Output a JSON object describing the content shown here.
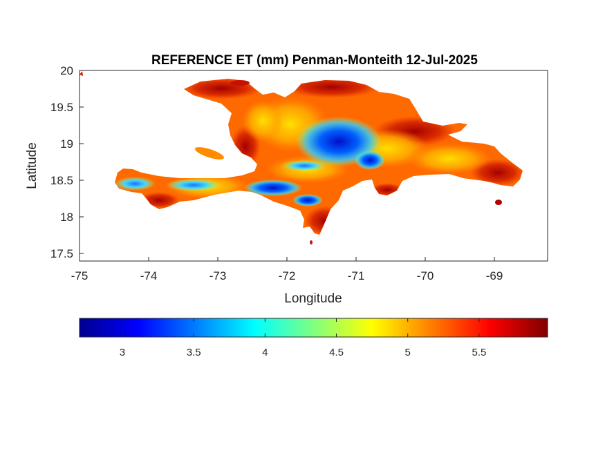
{
  "map": {
    "title": "REFERENCE ET (mm) Penman-Monteith 12-Jul-2025",
    "xlabel": "Longitude",
    "ylabel": "Latitude",
    "x_ticks": [
      "-75",
      "-74",
      "-73",
      "-72",
      "-71",
      "-70",
      "-69"
    ],
    "y_ticks": [
      "20",
      "19.5",
      "19",
      "18.5",
      "18",
      "17.5"
    ],
    "x_range": [
      -75,
      -68.2
    ],
    "y_range": [
      17.4,
      20
    ],
    "colormap": "jet",
    "colors": {
      "low": "#00008f",
      "mid": "#ffff00",
      "high": "#800000",
      "land_base": "#ff7a00"
    }
  },
  "colorbar": {
    "range": [
      2.7,
      5.98
    ],
    "tick_values": [
      3,
      3.5,
      4,
      4.5,
      5,
      5.5
    ],
    "ticks": [
      "3",
      "3.5",
      "4",
      "4.5",
      "5",
      "5.5"
    ]
  }
}
